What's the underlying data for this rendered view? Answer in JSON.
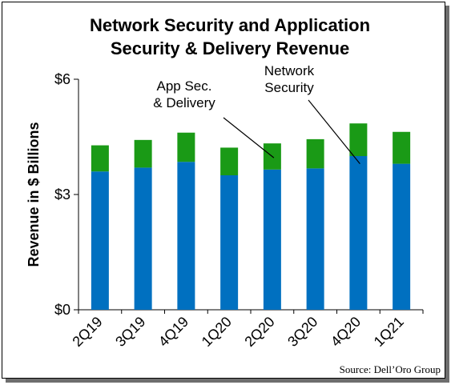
{
  "chart_data": {
    "type": "bar",
    "stacked": true,
    "title_lines": [
      "Network Security and Application",
      "Security & Delivery Revenue"
    ],
    "ylabel": "Revenue in $ Billions",
    "xlabel": "",
    "categories": [
      "2Q19",
      "3Q19",
      "4Q19",
      "1Q20",
      "2Q20",
      "3Q20",
      "4Q20",
      "1Q21"
    ],
    "series": [
      {
        "name": "Network Security",
        "color": "#0070c0",
        "values": [
          3.6,
          3.7,
          3.85,
          3.5,
          3.65,
          3.68,
          4.0,
          3.8
        ]
      },
      {
        "name": "App Sec. & Delivery",
        "color": "#1a9a16",
        "values": [
          0.68,
          0.72,
          0.76,
          0.72,
          0.68,
          0.76,
          0.85,
          0.83
        ]
      }
    ],
    "ylim": [
      0,
      6
    ],
    "yticks": [
      0,
      3,
      6
    ],
    "ytick_labels": [
      "$0",
      "$3",
      "$6"
    ],
    "grid": false,
    "annotations": [
      {
        "lines": [
          "App Sec.",
          "& Delivery"
        ],
        "target_category": "2Q20",
        "target_series": "App Sec. & Delivery"
      },
      {
        "lines": [
          "Network",
          "Security"
        ],
        "target_category": "4Q20",
        "target_series": "Network Security"
      }
    ],
    "source": "Source: Dell’Oro Group"
  }
}
